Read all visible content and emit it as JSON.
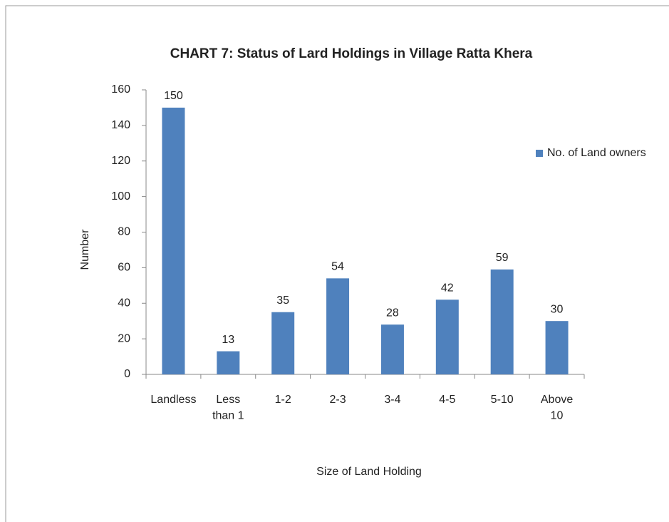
{
  "chart_data": {
    "type": "bar",
    "title": "CHART 7: Status of Lard Holdings in Village Ratta Khera",
    "x_label": "Size of Land Holding",
    "y_label": "Number",
    "categories": [
      "Landless",
      "Less than 1",
      "1-2",
      "2-3",
      "3-4",
      "4-5",
      "5-10",
      "Above 10"
    ],
    "series": [
      {
        "name": "No. of Land owners",
        "color": "#4f81bd",
        "values": [
          150,
          13,
          35,
          54,
          28,
          42,
          59,
          30
        ]
      }
    ],
    "ylim": [
      0,
      160
    ],
    "yticks": [
      0,
      20,
      40,
      60,
      80,
      100,
      120,
      140,
      160
    ],
    "grid": false,
    "legend": "right"
  }
}
